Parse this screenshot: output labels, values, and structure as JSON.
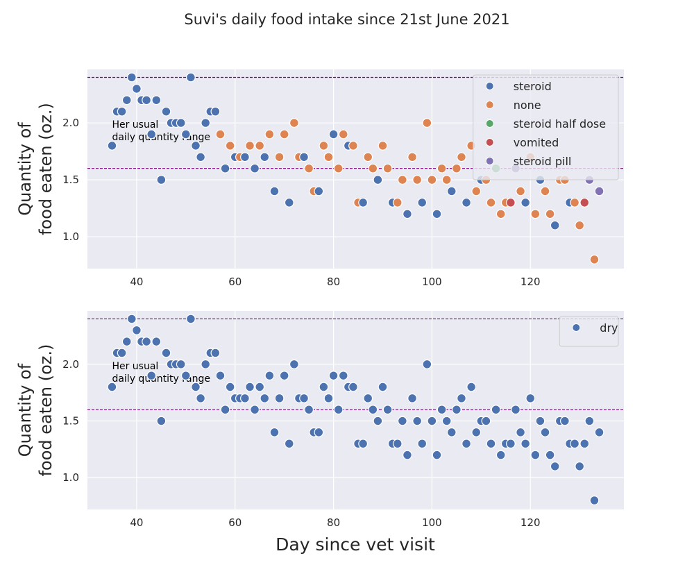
{
  "figure": {
    "title": "Suvi's daily food intake since 21st June 2021",
    "xlabel": "Day since vet visit"
  },
  "colors": {
    "steroid": "#4c72b0",
    "none": "#dd8452",
    "steroid half dose": "#55a868",
    "vomited": "#c44e52",
    "steroid pill": "#8172b3",
    "dry": "#4c72b0",
    "range_line": "#800080",
    "panel_bg": "#eaeaf2",
    "grid": "#ffffff"
  },
  "chart_data": [
    {
      "type": "scatter",
      "ylabel": [
        "Quantity of",
        "food eaten (oz.)"
      ],
      "xlim": [
        30,
        139
      ],
      "ylim": [
        0.72,
        2.47
      ],
      "xticks": [
        40,
        60,
        80,
        100,
        120
      ],
      "yticks": [
        1.0,
        1.5,
        2.0
      ],
      "hlines": [
        2.4,
        1.6
      ],
      "annotation": [
        "Her usual",
        "daily quantity range"
      ],
      "legend_position": "upper right",
      "hue_order": [
        "steroid",
        "none",
        "steroid half dose",
        "vomited",
        "steroid pill"
      ],
      "points": [
        [
          35,
          1.8,
          "steroid"
        ],
        [
          36,
          2.1,
          "steroid"
        ],
        [
          37,
          2.1,
          "steroid"
        ],
        [
          38,
          2.2,
          "steroid"
        ],
        [
          39,
          2.4,
          "steroid"
        ],
        [
          40,
          2.3,
          "steroid"
        ],
        [
          41,
          2.2,
          "steroid"
        ],
        [
          42,
          2.2,
          "steroid"
        ],
        [
          43,
          1.9,
          "steroid"
        ],
        [
          44,
          2.2,
          "steroid"
        ],
        [
          45,
          1.5,
          "steroid"
        ],
        [
          46,
          2.1,
          "steroid"
        ],
        [
          47,
          2.0,
          "steroid"
        ],
        [
          48,
          2.0,
          "steroid"
        ],
        [
          49,
          2.0,
          "steroid"
        ],
        [
          50,
          1.9,
          "steroid"
        ],
        [
          51,
          2.4,
          "steroid"
        ],
        [
          52,
          1.8,
          "steroid"
        ],
        [
          53,
          1.7,
          "steroid"
        ],
        [
          54,
          2.0,
          "steroid"
        ],
        [
          55,
          2.1,
          "steroid"
        ],
        [
          56,
          2.1,
          "steroid"
        ],
        [
          57,
          1.9,
          "none"
        ],
        [
          58,
          1.6,
          "steroid"
        ],
        [
          59,
          1.8,
          "none"
        ],
        [
          60,
          1.7,
          "steroid"
        ],
        [
          61,
          1.7,
          "none"
        ],
        [
          62,
          1.7,
          "steroid"
        ],
        [
          63,
          1.8,
          "none"
        ],
        [
          64,
          1.6,
          "steroid"
        ],
        [
          65,
          1.8,
          "none"
        ],
        [
          66,
          1.7,
          "steroid"
        ],
        [
          67,
          1.9,
          "none"
        ],
        [
          68,
          1.4,
          "steroid"
        ],
        [
          69,
          1.7,
          "none"
        ],
        [
          70,
          1.9,
          "none"
        ],
        [
          71,
          1.3,
          "steroid"
        ],
        [
          72,
          2.0,
          "none"
        ],
        [
          73,
          1.7,
          "none"
        ],
        [
          74,
          1.7,
          "steroid"
        ],
        [
          75,
          1.6,
          "none"
        ],
        [
          76,
          1.4,
          "none"
        ],
        [
          77,
          1.4,
          "steroid"
        ],
        [
          78,
          1.8,
          "none"
        ],
        [
          79,
          1.7,
          "none"
        ],
        [
          80,
          1.9,
          "steroid"
        ],
        [
          81,
          1.6,
          "none"
        ],
        [
          82,
          1.9,
          "none"
        ],
        [
          83,
          1.8,
          "steroid"
        ],
        [
          84,
          1.8,
          "none"
        ],
        [
          85,
          1.3,
          "none"
        ],
        [
          86,
          1.3,
          "steroid"
        ],
        [
          87,
          1.7,
          "none"
        ],
        [
          88,
          1.6,
          "none"
        ],
        [
          89,
          1.5,
          "steroid"
        ],
        [
          90,
          1.8,
          "none"
        ],
        [
          91,
          1.6,
          "none"
        ],
        [
          92,
          1.3,
          "steroid"
        ],
        [
          93,
          1.3,
          "none"
        ],
        [
          94,
          1.5,
          "none"
        ],
        [
          95,
          1.2,
          "steroid"
        ],
        [
          96,
          1.7,
          "none"
        ],
        [
          97,
          1.5,
          "none"
        ],
        [
          98,
          1.3,
          "steroid"
        ],
        [
          99,
          2.0,
          "none"
        ],
        [
          100,
          1.5,
          "none"
        ],
        [
          101,
          1.2,
          "steroid"
        ],
        [
          102,
          1.6,
          "none"
        ],
        [
          103,
          1.5,
          "none"
        ],
        [
          104,
          1.4,
          "steroid"
        ],
        [
          105,
          1.6,
          "none"
        ],
        [
          106,
          1.7,
          "none"
        ],
        [
          107,
          1.3,
          "steroid"
        ],
        [
          108,
          1.8,
          "none"
        ],
        [
          109,
          1.4,
          "none"
        ],
        [
          110,
          1.5,
          "steroid"
        ],
        [
          111,
          1.5,
          "none"
        ],
        [
          112,
          1.3,
          "none"
        ],
        [
          113,
          1.6,
          "steroid half dose"
        ],
        [
          114,
          1.2,
          "none"
        ],
        [
          115,
          1.3,
          "none"
        ],
        [
          116,
          1.3,
          "vomited"
        ],
        [
          117,
          1.6,
          "steroid pill"
        ],
        [
          118,
          1.4,
          "none"
        ],
        [
          119,
          1.3,
          "steroid"
        ],
        [
          120,
          1.7,
          "none"
        ],
        [
          121,
          1.2,
          "none"
        ],
        [
          122,
          1.5,
          "steroid"
        ],
        [
          123,
          1.4,
          "none"
        ],
        [
          124,
          1.2,
          "none"
        ],
        [
          125,
          1.1,
          "steroid"
        ],
        [
          126,
          1.5,
          "none"
        ],
        [
          127,
          1.5,
          "none"
        ],
        [
          128,
          1.3,
          "steroid"
        ],
        [
          129,
          1.3,
          "none"
        ],
        [
          130,
          1.1,
          "none"
        ],
        [
          131,
          1.3,
          "vomited"
        ],
        [
          132,
          1.5,
          "steroid pill"
        ],
        [
          133,
          0.8,
          "none"
        ],
        [
          134,
          1.4,
          "steroid pill"
        ]
      ]
    },
    {
      "type": "scatter",
      "ylabel": [
        "Quantity of",
        "food eaten (oz.)"
      ],
      "xlim": [
        30,
        139
      ],
      "ylim": [
        0.72,
        2.47
      ],
      "xticks": [
        40,
        60,
        80,
        100,
        120
      ],
      "yticks": [
        1.0,
        1.5,
        2.0
      ],
      "hlines": [
        2.4,
        1.6
      ],
      "annotation": [
        "Her usual",
        "daily quantity range"
      ],
      "legend_position": "upper right",
      "hue_order": [
        "dry"
      ],
      "points": [
        [
          35,
          1.8,
          "dry"
        ],
        [
          36,
          2.1,
          "dry"
        ],
        [
          37,
          2.1,
          "dry"
        ],
        [
          38,
          2.2,
          "dry"
        ],
        [
          39,
          2.4,
          "dry"
        ],
        [
          40,
          2.3,
          "dry"
        ],
        [
          41,
          2.2,
          "dry"
        ],
        [
          42,
          2.2,
          "dry"
        ],
        [
          43,
          1.9,
          "dry"
        ],
        [
          44,
          2.2,
          "dry"
        ],
        [
          45,
          1.5,
          "dry"
        ],
        [
          46,
          2.1,
          "dry"
        ],
        [
          47,
          2.0,
          "dry"
        ],
        [
          48,
          2.0,
          "dry"
        ],
        [
          49,
          2.0,
          "dry"
        ],
        [
          50,
          1.9,
          "dry"
        ],
        [
          51,
          2.4,
          "dry"
        ],
        [
          52,
          1.8,
          "dry"
        ],
        [
          53,
          1.7,
          "dry"
        ],
        [
          54,
          2.0,
          "dry"
        ],
        [
          55,
          2.1,
          "dry"
        ],
        [
          56,
          2.1,
          "dry"
        ],
        [
          57,
          1.9,
          "dry"
        ],
        [
          58,
          1.6,
          "dry"
        ],
        [
          59,
          1.8,
          "dry"
        ],
        [
          60,
          1.7,
          "dry"
        ],
        [
          61,
          1.7,
          "dry"
        ],
        [
          62,
          1.7,
          "dry"
        ],
        [
          63,
          1.8,
          "dry"
        ],
        [
          64,
          1.6,
          "dry"
        ],
        [
          65,
          1.8,
          "dry"
        ],
        [
          66,
          1.7,
          "dry"
        ],
        [
          67,
          1.9,
          "dry"
        ],
        [
          68,
          1.4,
          "dry"
        ],
        [
          69,
          1.7,
          "dry"
        ],
        [
          70,
          1.9,
          "dry"
        ],
        [
          71,
          1.3,
          "dry"
        ],
        [
          72,
          2.0,
          "dry"
        ],
        [
          73,
          1.7,
          "dry"
        ],
        [
          74,
          1.7,
          "dry"
        ],
        [
          75,
          1.6,
          "dry"
        ],
        [
          76,
          1.4,
          "dry"
        ],
        [
          77,
          1.4,
          "dry"
        ],
        [
          78,
          1.8,
          "dry"
        ],
        [
          79,
          1.7,
          "dry"
        ],
        [
          80,
          1.9,
          "dry"
        ],
        [
          81,
          1.6,
          "dry"
        ],
        [
          82,
          1.9,
          "dry"
        ],
        [
          83,
          1.8,
          "dry"
        ],
        [
          84,
          1.8,
          "dry"
        ],
        [
          85,
          1.3,
          "dry"
        ],
        [
          86,
          1.3,
          "dry"
        ],
        [
          87,
          1.7,
          "dry"
        ],
        [
          88,
          1.6,
          "dry"
        ],
        [
          89,
          1.5,
          "dry"
        ],
        [
          90,
          1.8,
          "dry"
        ],
        [
          91,
          1.6,
          "dry"
        ],
        [
          92,
          1.3,
          "dry"
        ],
        [
          93,
          1.3,
          "dry"
        ],
        [
          94,
          1.5,
          "dry"
        ],
        [
          95,
          1.2,
          "dry"
        ],
        [
          96,
          1.7,
          "dry"
        ],
        [
          97,
          1.5,
          "dry"
        ],
        [
          98,
          1.3,
          "dry"
        ],
        [
          99,
          2.0,
          "dry"
        ],
        [
          100,
          1.5,
          "dry"
        ],
        [
          101,
          1.2,
          "dry"
        ],
        [
          102,
          1.6,
          "dry"
        ],
        [
          103,
          1.5,
          "dry"
        ],
        [
          104,
          1.4,
          "dry"
        ],
        [
          105,
          1.6,
          "dry"
        ],
        [
          106,
          1.7,
          "dry"
        ],
        [
          107,
          1.3,
          "dry"
        ],
        [
          108,
          1.8,
          "dry"
        ],
        [
          109,
          1.4,
          "dry"
        ],
        [
          110,
          1.5,
          "dry"
        ],
        [
          111,
          1.5,
          "dry"
        ],
        [
          112,
          1.3,
          "dry"
        ],
        [
          113,
          1.6,
          "dry"
        ],
        [
          114,
          1.2,
          "dry"
        ],
        [
          115,
          1.3,
          "dry"
        ],
        [
          116,
          1.3,
          "dry"
        ],
        [
          117,
          1.6,
          "dry"
        ],
        [
          118,
          1.4,
          "dry"
        ],
        [
          119,
          1.3,
          "dry"
        ],
        [
          120,
          1.7,
          "dry"
        ],
        [
          121,
          1.2,
          "dry"
        ],
        [
          122,
          1.5,
          "dry"
        ],
        [
          123,
          1.4,
          "dry"
        ],
        [
          124,
          1.2,
          "dry"
        ],
        [
          125,
          1.1,
          "dry"
        ],
        [
          126,
          1.5,
          "dry"
        ],
        [
          127,
          1.5,
          "dry"
        ],
        [
          128,
          1.3,
          "dry"
        ],
        [
          129,
          1.3,
          "dry"
        ],
        [
          130,
          1.1,
          "dry"
        ],
        [
          131,
          1.3,
          "dry"
        ],
        [
          132,
          1.5,
          "dry"
        ],
        [
          133,
          0.8,
          "dry"
        ],
        [
          134,
          1.4,
          "dry"
        ]
      ]
    }
  ]
}
